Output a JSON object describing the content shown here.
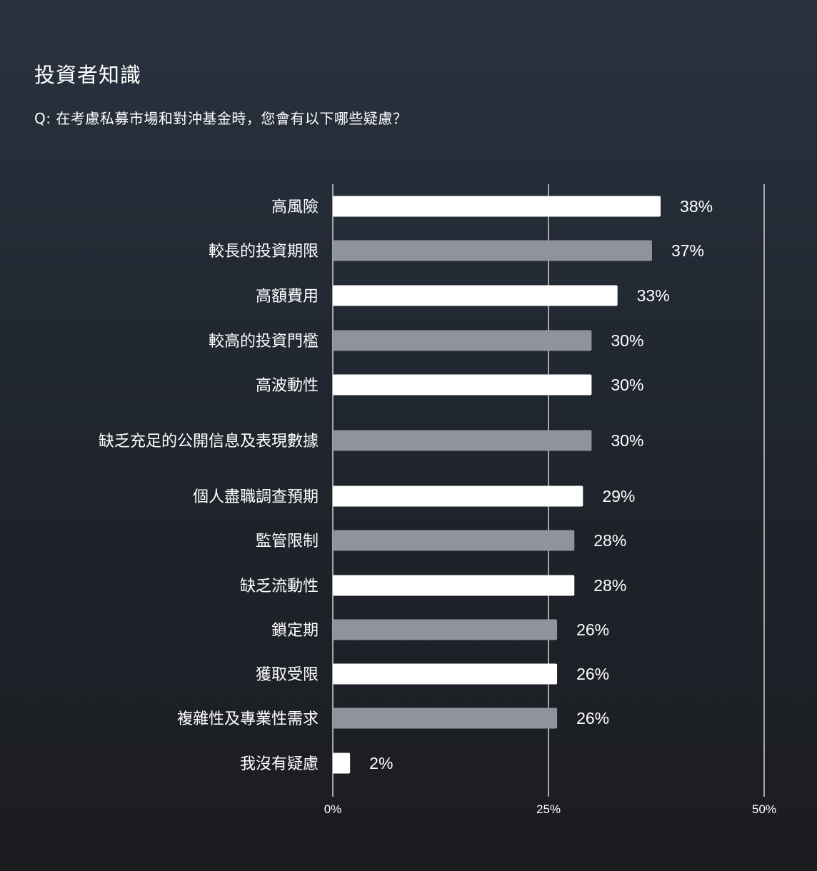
{
  "header": {
    "title": "投資者知識",
    "question": "Q: 在考慮私募市場和對沖基金時，您會有以下哪些疑慮？"
  },
  "colors": {
    "bar_primary": "#ffffff",
    "bar_secondary": "#8f939c",
    "gridline": "#cfd2d6"
  },
  "chart_data": {
    "type": "bar",
    "orientation": "horizontal",
    "categories": [
      "高風險",
      "較長的投資期限",
      "高額費用",
      "較高的投資門檻",
      "高波動性",
      "缺乏充足的公開信息及表現數據",
      "個人盡職調查預期",
      "監管限制",
      "缺乏流動性",
      "鎖定期",
      "獲取受限",
      "複雜性及專業性需求",
      "我沒有疑慮"
    ],
    "values": [
      38,
      37,
      33,
      30,
      30,
      30,
      29,
      28,
      28,
      26,
      26,
      26,
      2
    ],
    "value_labels": [
      "38%",
      "37%",
      "33%",
      "30%",
      "30%",
      "30%",
      "29%",
      "28%",
      "28%",
      "26%",
      "26%",
      "26%",
      "2%"
    ],
    "xlim": [
      0,
      50
    ],
    "ticks": [
      0,
      25,
      50
    ],
    "tick_labels": [
      "0%",
      "25%",
      "50%"
    ],
    "grid": true,
    "bar_colors": "alternating white / gray"
  }
}
